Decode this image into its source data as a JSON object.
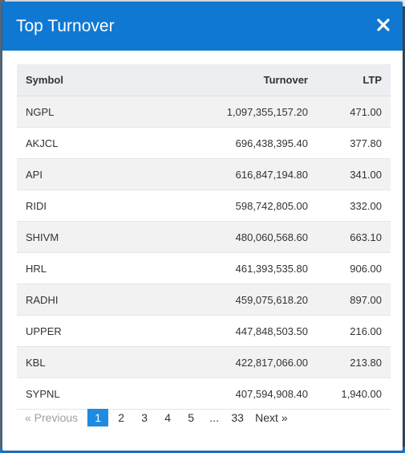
{
  "modal": {
    "title": "Top Turnover",
    "close_icon": "close-x-icon"
  },
  "table": {
    "headers": {
      "symbol": "Symbol",
      "turnover": "Turnover",
      "ltp": "LTP"
    },
    "rows": [
      {
        "symbol": "NGPL",
        "turnover": "1,097,355,157.20",
        "ltp": "471.00"
      },
      {
        "symbol": "AKJCL",
        "turnover": "696,438,395.40",
        "ltp": "377.80"
      },
      {
        "symbol": "API",
        "turnover": "616,847,194.80",
        "ltp": "341.00"
      },
      {
        "symbol": "RIDI",
        "turnover": "598,742,805.00",
        "ltp": "332.00"
      },
      {
        "symbol": "SHIVM",
        "turnover": "480,060,568.60",
        "ltp": "663.10"
      },
      {
        "symbol": "HRL",
        "turnover": "461,393,535.80",
        "ltp": "906.00"
      },
      {
        "symbol": "RADHI",
        "turnover": "459,075,618.20",
        "ltp": "897.00"
      },
      {
        "symbol": "UPPER",
        "turnover": "447,848,503.50",
        "ltp": "216.00"
      },
      {
        "symbol": "KBL",
        "turnover": "422,817,066.00",
        "ltp": "213.80"
      },
      {
        "symbol": "SYPNL",
        "turnover": "407,594,908.40",
        "ltp": "1,940.00"
      }
    ]
  },
  "pagination": {
    "prev_label": "« Previous",
    "pages": [
      "1",
      "2",
      "3",
      "4",
      "5"
    ],
    "ellipsis": "...",
    "last_page": "33",
    "next_label": "Next »",
    "active_page": "1"
  },
  "colors": {
    "header_bg": "#0f78d3",
    "active_page_bg": "#1f8ae0",
    "table_header_bg": "#eceef1"
  }
}
